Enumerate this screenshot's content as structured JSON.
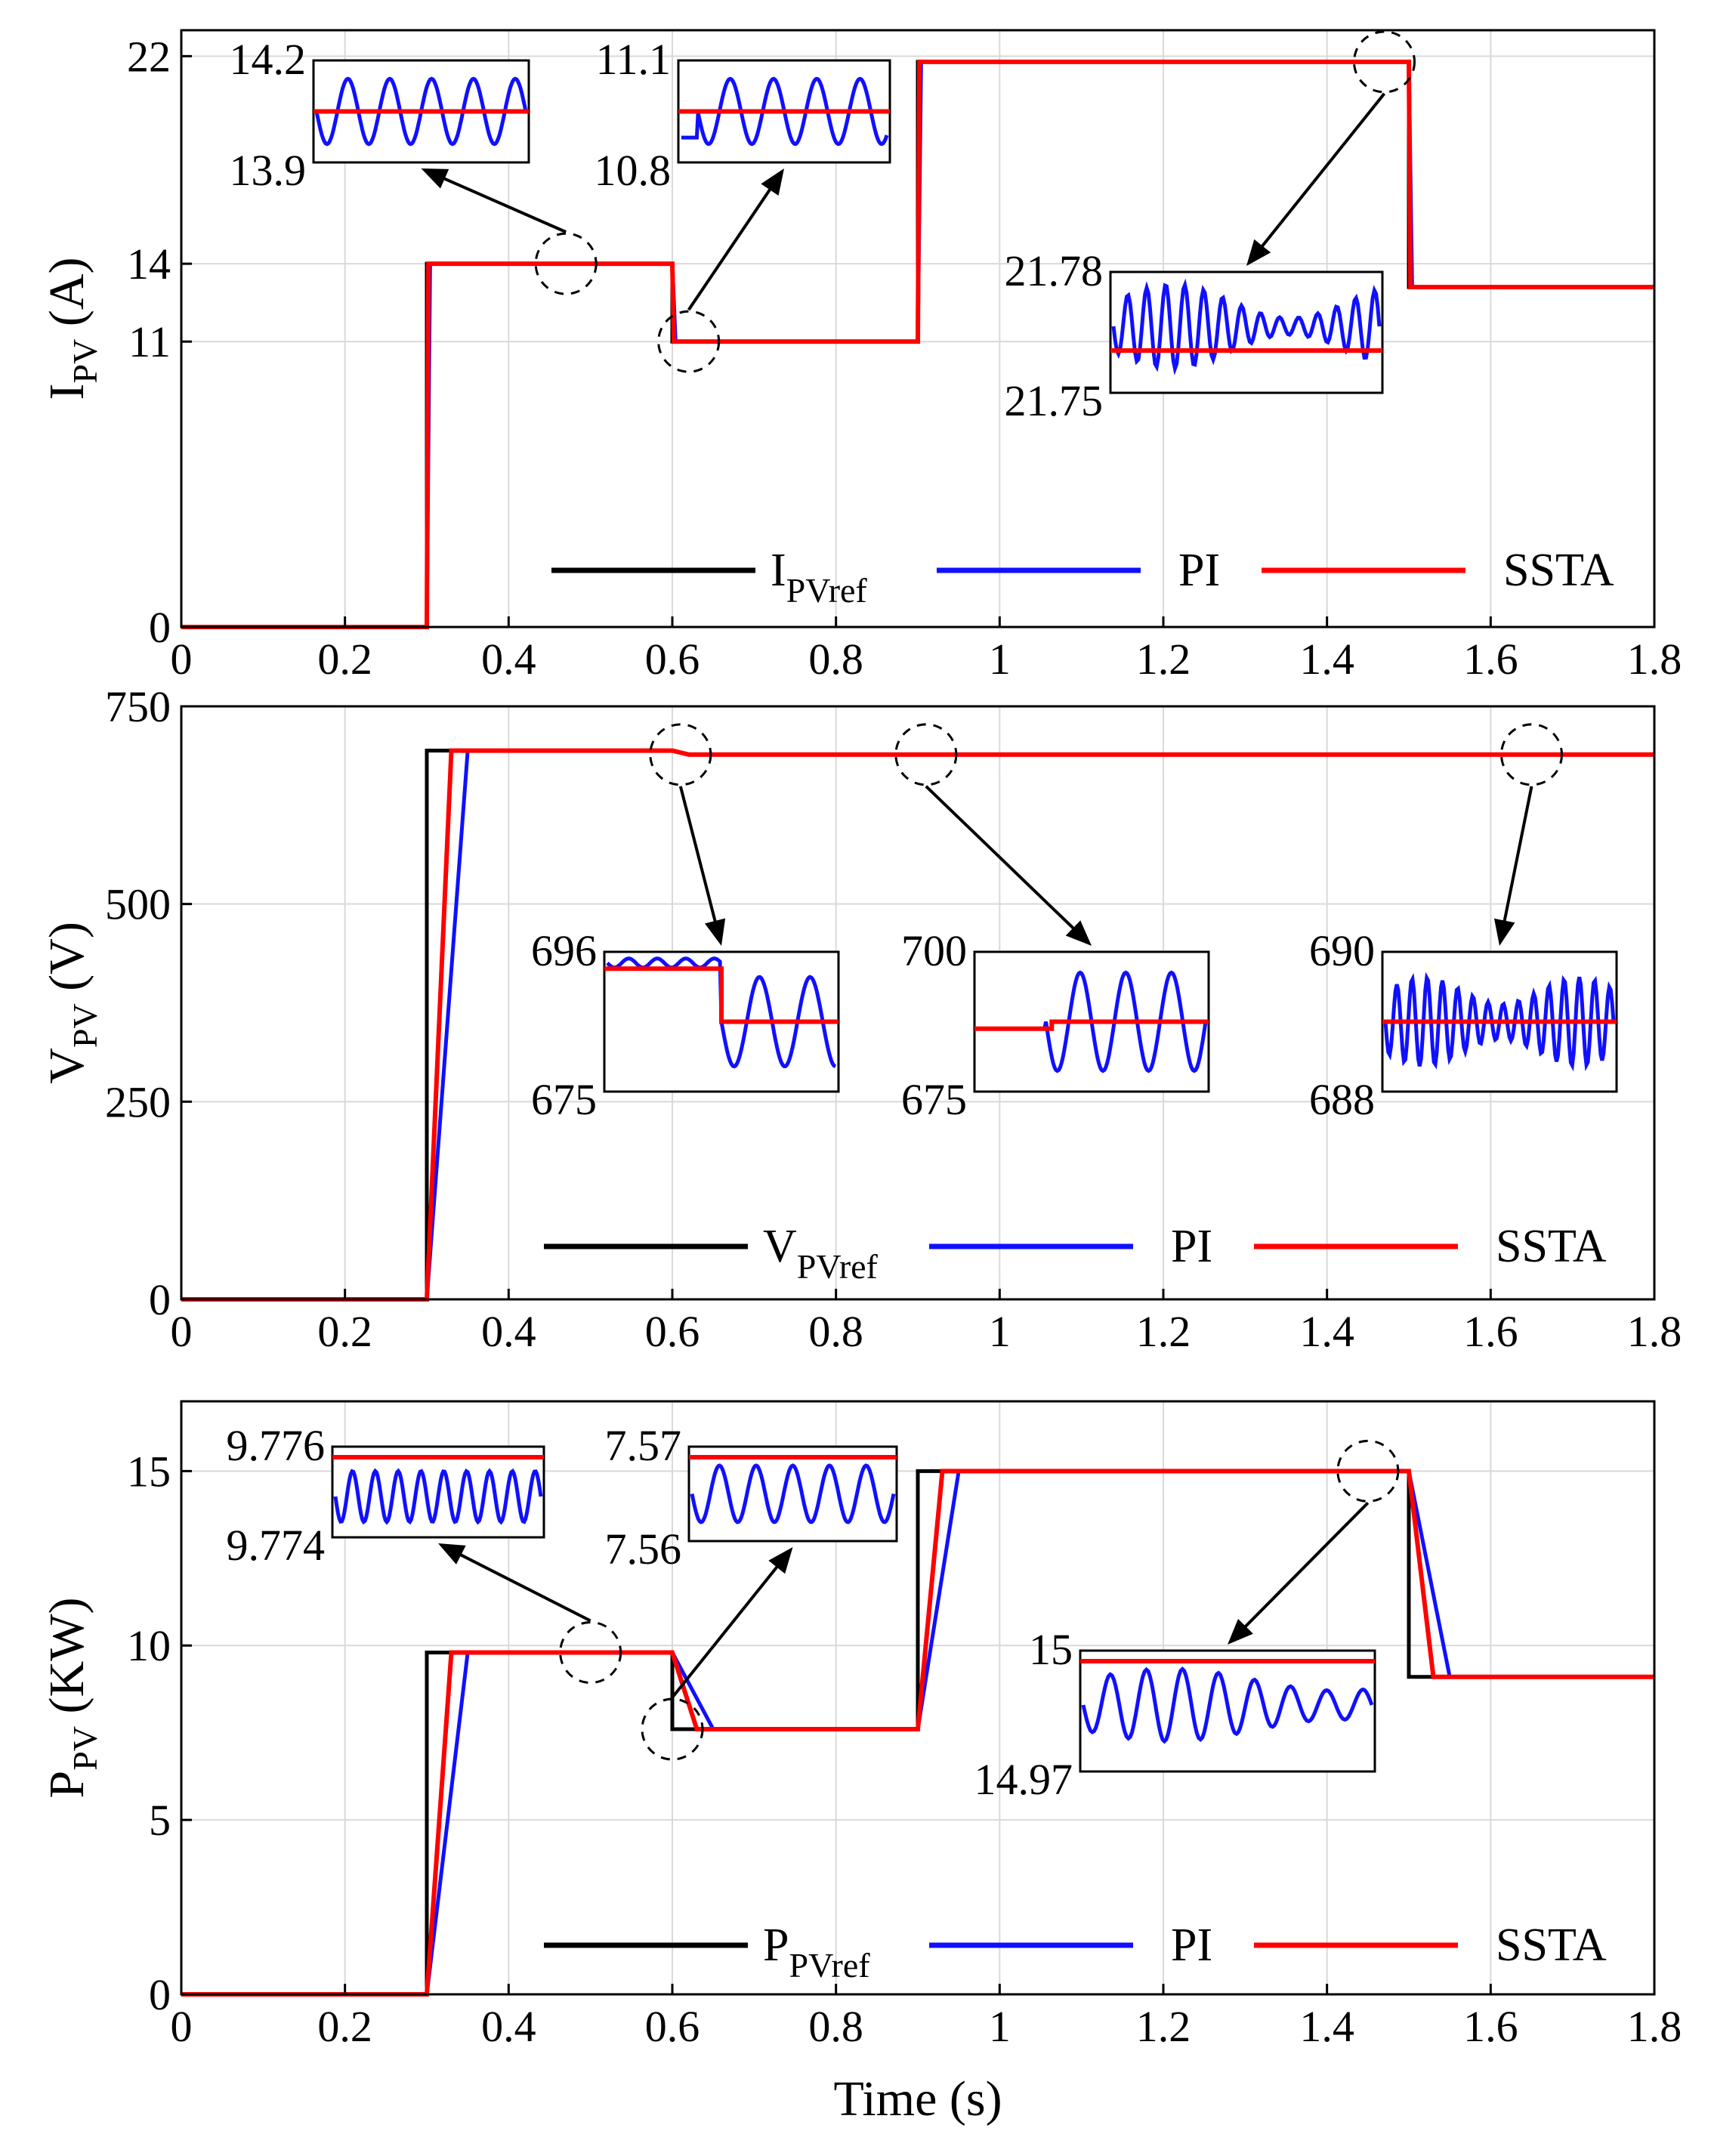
{
  "colors": {
    "ref": "#000000",
    "pi": "#1010ff",
    "ssta": "#ff0000",
    "grid": "#d9d9d9"
  },
  "chart_data": [
    {
      "type": "line",
      "id": "current",
      "ylabel_main": "I",
      "ylabel_sub": "PV",
      "ylabel_unit": " (A)",
      "xlim": [
        0,
        1.8
      ],
      "ylim": [
        0,
        23
      ],
      "yticks": [
        0,
        11,
        14,
        22
      ],
      "xticks": [
        0,
        0.2,
        0.4,
        0.6,
        0.8,
        1,
        1.2,
        1.4,
        1.6,
        1.8
      ],
      "xtick_labels": [
        "0",
        "0.2",
        "0.4",
        "0.6",
        "0.8",
        "1",
        "1.2",
        "1.4",
        "1.6",
        "1.8"
      ],
      "legend": [
        {
          "main": "I",
          "sub": "PVref",
          "series": "ref"
        },
        {
          "main": "PI",
          "sub": "",
          "series": "pi"
        },
        {
          "main": "SSTA",
          "sub": "",
          "series": "ssta"
        }
      ],
      "reference": {
        "t": [
          0,
          0.3,
          0.3,
          0.6,
          0.6,
          0.9,
          0.9,
          1.5,
          1.5,
          1.8
        ],
        "y": [
          0,
          0,
          14,
          14,
          11,
          11,
          21.78,
          21.78,
          13.1,
          13.1
        ]
      },
      "steps": [
        0,
        14,
        11,
        21.78,
        13.1
      ],
      "insets": [
        {
          "top": "14.2",
          "bottom": "13.9",
          "style": "sine",
          "focus_t": 0.47,
          "focus_y": 14
        },
        {
          "top": "11.1",
          "bottom": "10.8",
          "style": "step-sine",
          "focus_t": 0.62,
          "focus_y": 11
        },
        {
          "top": "21.78",
          "bottom": "21.75",
          "style": "noise-low",
          "focus_t": 1.47,
          "focus_y": 21.78
        }
      ]
    },
    {
      "type": "line",
      "id": "voltage",
      "ylabel_main": "V",
      "ylabel_sub": "PV",
      "ylabel_unit": " (V)",
      "xlim": [
        0,
        1.8
      ],
      "ylim": [
        0,
        750
      ],
      "yticks": [
        0,
        250,
        500,
        750
      ],
      "xticks": [
        0,
        0.2,
        0.4,
        0.6,
        0.8,
        1,
        1.2,
        1.4,
        1.6,
        1.8
      ],
      "xtick_labels": [
        "0",
        "0.2",
        "0.4",
        "0.6",
        "0.8",
        "1",
        "1.2",
        "1.4",
        "1.6",
        "1.8"
      ],
      "legend": [
        {
          "main": "V",
          "sub": "PVref",
          "series": "ref"
        },
        {
          "main": "PI",
          "sub": "",
          "series": "pi"
        },
        {
          "main": "SSTA",
          "sub": "",
          "series": "ssta"
        }
      ],
      "reference": {
        "t": [
          0,
          0.3,
          0.3,
          0.6,
          0.62,
          1.8
        ],
        "y": [
          0,
          0,
          694,
          694,
          689,
          689
        ]
      },
      "insets": [
        {
          "top": "696",
          "bottom": "675",
          "style": "drop-sine",
          "focus_t": 0.61,
          "focus_y": 689
        },
        {
          "top": "700",
          "bottom": "675",
          "style": "rise-sine",
          "focus_t": 0.91,
          "focus_y": 689
        },
        {
          "top": "690",
          "bottom": "688",
          "style": "noise-mid",
          "focus_t": 1.65,
          "focus_y": 689
        }
      ]
    },
    {
      "type": "line",
      "id": "power",
      "ylabel_main": "P",
      "ylabel_sub": "PV",
      "ylabel_unit": " (KW)",
      "xlim": [
        0,
        1.8
      ],
      "ylim": [
        0,
        17
      ],
      "yticks": [
        0,
        5,
        10,
        15
      ],
      "xticks": [
        0,
        0.2,
        0.4,
        0.6,
        0.8,
        1,
        1.2,
        1.4,
        1.6,
        1.8
      ],
      "xtick_labels": [
        "0",
        "0.2",
        "0.4",
        "0.6",
        "0.8",
        "1",
        "1.2",
        "1.4",
        "1.6",
        "1.8"
      ],
      "xlabel": "Time (s)",
      "legend": [
        {
          "main": "P",
          "sub": "PVref",
          "series": "ref"
        },
        {
          "main": "PI",
          "sub": "",
          "series": "pi"
        },
        {
          "main": "SSTA",
          "sub": "",
          "series": "ssta"
        }
      ],
      "reference": {
        "t": [
          0,
          0.3,
          0.3,
          0.6,
          0.6,
          0.9,
          0.9,
          1.5,
          1.5,
          1.8
        ],
        "y": [
          0,
          0,
          9.8,
          9.8,
          7.6,
          7.6,
          15,
          15,
          9.1,
          9.1
        ]
      },
      "insets": [
        {
          "top": "9.776",
          "bottom": "9.774",
          "style": "sine-top",
          "focus_t": 0.5,
          "focus_y": 9.8
        },
        {
          "top": "7.57",
          "bottom": "7.56",
          "style": "step-sine-top",
          "focus_t": 0.6,
          "focus_y": 7.6
        },
        {
          "top": "15",
          "bottom": "14.97",
          "style": "noise-top",
          "focus_t": 1.45,
          "focus_y": 15
        }
      ]
    }
  ]
}
